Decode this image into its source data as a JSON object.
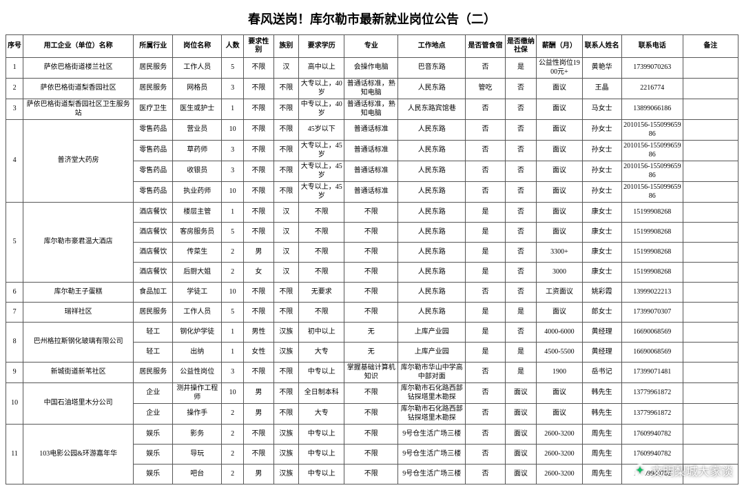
{
  "title": "春风送岗！库尔勒市最新就业岗位公告（二）",
  "watermark": "文明梨城大家谈",
  "headers": [
    "序号",
    "用工企业（单位）名称",
    "所属行业",
    "岗位名称",
    "人数",
    "要求性别",
    "族别",
    "要求学历",
    "专业",
    "工作地点",
    "是否管食宿",
    "是否缴纳社保",
    "薪酬（月）",
    "联系人姓名",
    "联系电话",
    "备注"
  ],
  "groups": [
    {
      "seq": "1",
      "company": "萨依巴格街道楼兰社区",
      "rows": [
        {
          "ind": "居民服务",
          "pos": "工作人员",
          "cnt": "5",
          "sex": "不限",
          "nat": "汉",
          "edu": "高中以上",
          "major": "会操作电脑",
          "loc": "巴音东路",
          "food": "否",
          "ins": "是",
          "sal": "公益性岗位1900元+",
          "name": "黄艳华",
          "tel": "17399070263",
          "note": ""
        }
      ]
    },
    {
      "seq": "2",
      "company": "萨依巴格街道梨香园社区",
      "rows": [
        {
          "ind": "居民服务",
          "pos": "网格员",
          "cnt": "3",
          "sex": "不限",
          "nat": "不限",
          "edu": "大专以上，40岁",
          "major": "普通话标准，熟知电脑",
          "loc": "人民东路",
          "food": "管吃",
          "ins": "否",
          "sal": "面议",
          "name": "王晶",
          "tel": "2216774",
          "note": ""
        }
      ]
    },
    {
      "seq": "3",
      "company": "萨依巴格街道梨香园社区卫生服务站",
      "rows": [
        {
          "ind": "医疗卫生",
          "pos": "医生或护士",
          "cnt": "1",
          "sex": "不限",
          "nat": "不限",
          "edu": "中专以上，40岁",
          "major": "普通话标准，熟知电脑",
          "loc": "人民东路宾馆巷",
          "food": "否",
          "ins": "否",
          "sal": "面议",
          "name": "马女士",
          "tel": "13899066186",
          "note": ""
        }
      ]
    },
    {
      "seq": "4",
      "company": "普济堂大药房",
      "rows": [
        {
          "ind": "零售药品",
          "pos": "营业员",
          "cnt": "10",
          "sex": "不限",
          "nat": "不限",
          "edu": "45岁以下",
          "major": "普通话标准",
          "loc": "人民东路",
          "food": "否",
          "ins": "否",
          "sal": "面议",
          "name": "孙女士",
          "tel": "2010156-15509965986",
          "note": ""
        },
        {
          "ind": "零售药品",
          "pos": "草药师",
          "cnt": "3",
          "sex": "不限",
          "nat": "不限",
          "edu": "大专以上，45岁",
          "major": "普通话标准",
          "loc": "人民东路",
          "food": "否",
          "ins": "否",
          "sal": "面议",
          "name": "孙女士",
          "tel": "2010156-15509965986",
          "note": ""
        },
        {
          "ind": "零售药品",
          "pos": "收银员",
          "cnt": "3",
          "sex": "不限",
          "nat": "不限",
          "edu": "大专以上，45岁",
          "major": "普通话标准",
          "loc": "人民东路",
          "food": "否",
          "ins": "否",
          "sal": "面议",
          "name": "孙女士",
          "tel": "2010156-15509965986",
          "note": ""
        },
        {
          "ind": "零售药品",
          "pos": "执业药师",
          "cnt": "10",
          "sex": "不限",
          "nat": "不限",
          "edu": "大专以上，45岁",
          "major": "普通话标准",
          "loc": "人民东路",
          "food": "否",
          "ins": "否",
          "sal": "面议",
          "name": "孙女士",
          "tel": "2010156-15509965986",
          "note": ""
        }
      ]
    },
    {
      "seq": "5",
      "company": "库尔勒市豪君温大酒店",
      "rows": [
        {
          "ind": "酒店餐饮",
          "pos": "楼层主管",
          "cnt": "1",
          "sex": "不限",
          "nat": "汉",
          "edu": "不限",
          "major": "不限",
          "loc": "人民东路",
          "food": "是",
          "ins": "否",
          "sal": "面议",
          "name": "康女士",
          "tel": "15199908268",
          "note": ""
        },
        {
          "ind": "酒店餐饮",
          "pos": "客房服务员",
          "cnt": "5",
          "sex": "不限",
          "nat": "汉",
          "edu": "不限",
          "major": "不限",
          "loc": "人民东路",
          "food": "是",
          "ins": "否",
          "sal": "面议",
          "name": "康女士",
          "tel": "15199908268",
          "note": ""
        },
        {
          "ind": "酒店餐饮",
          "pos": "传菜生",
          "cnt": "2",
          "sex": "男",
          "nat": "汉",
          "edu": "不限",
          "major": "不限",
          "loc": "人民东路",
          "food": "是",
          "ins": "否",
          "sal": "3300+",
          "name": "康女士",
          "tel": "15199908268",
          "note": ""
        },
        {
          "ind": "酒店餐饮",
          "pos": "后厨大姐",
          "cnt": "2",
          "sex": "女",
          "nat": "汉",
          "edu": "不限",
          "major": "不限",
          "loc": "人民东路",
          "food": "是",
          "ins": "否",
          "sal": "3000",
          "name": "康女士",
          "tel": "15199908268",
          "note": ""
        }
      ]
    },
    {
      "seq": "6",
      "company": "库尔勒王子蛋糕",
      "rows": [
        {
          "ind": "食品加工",
          "pos": "学徒工",
          "cnt": "10",
          "sex": "不限",
          "nat": "不限",
          "edu": "无要求",
          "major": "不限",
          "loc": "人民东路",
          "food": "否",
          "ins": "否",
          "sal": "工资面议",
          "name": "姚彩霞",
          "tel": "13999022213",
          "note": ""
        }
      ]
    },
    {
      "seq": "7",
      "company": "瑞祥社区",
      "rows": [
        {
          "ind": "居民服务",
          "pos": "工作人员",
          "cnt": "5",
          "sex": "不限",
          "nat": "不限",
          "edu": "不限",
          "major": "不限",
          "loc": "人民东路",
          "food": "是",
          "ins": "是",
          "sal": "面议",
          "name": "郎女士",
          "tel": "17399070307",
          "note": ""
        }
      ]
    },
    {
      "seq": "8",
      "company": "巴州格拉斯钢化玻璃有限公司",
      "rows": [
        {
          "ind": "轻工",
          "pos": "钢化炉学徒",
          "cnt": "1",
          "sex": "男性",
          "nat": "汉族",
          "edu": "初中以上",
          "major": "无",
          "loc": "上库产业园",
          "food": "是",
          "ins": "否",
          "sal": "4000-6000",
          "name": "黄经理",
          "tel": "16690068569",
          "note": ""
        },
        {
          "ind": "轻工",
          "pos": "出纳",
          "cnt": "1",
          "sex": "女性",
          "nat": "汉族",
          "edu": "大专",
          "major": "无",
          "loc": "上库产业园",
          "food": "是",
          "ins": "是",
          "sal": "4500-5500",
          "name": "黄经理",
          "tel": "16690068569",
          "note": ""
        }
      ]
    },
    {
      "seq": "9",
      "company": "新城街道新苇社区",
      "rows": [
        {
          "ind": "居民服务",
          "pos": "公益性岗位",
          "cnt": "3",
          "sex": "不限",
          "nat": "不限",
          "edu": "中专以上",
          "major": "掌握基础计算机知识",
          "loc": "库尔勒市华山中学高中部对面",
          "food": "否",
          "ins": "是",
          "sal": "1900",
          "name": "岳书记",
          "tel": "17399071481",
          "note": ""
        }
      ]
    },
    {
      "seq": "10",
      "company": "中国石油塔里木分公司",
      "rows": [
        {
          "ind": "企业",
          "pos": "测井操作工程师",
          "cnt": "10",
          "sex": "男",
          "nat": "不限",
          "edu": "全日制本科",
          "major": "不限",
          "loc": "库尔勒市石化路西部钻探塔里木勘探",
          "food": "否",
          "ins": "面议",
          "sal": "面议",
          "name": "韩先生",
          "tel": "13779961872",
          "note": ""
        },
        {
          "ind": "企业",
          "pos": "操作手",
          "cnt": "2",
          "sex": "男",
          "nat": "不限",
          "edu": "大专",
          "major": "不限",
          "loc": "库尔勒市石化路西部钻探塔里木勘探",
          "food": "否",
          "ins": "面议",
          "sal": "面议",
          "name": "韩先生",
          "tel": "13779961872",
          "note": ""
        }
      ]
    },
    {
      "seq": "11",
      "company": "103电影公园&环游嘉年华",
      "rows": [
        {
          "ind": "娱乐",
          "pos": "影务",
          "cnt": "2",
          "sex": "不限",
          "nat": "汉族",
          "edu": "中专以上",
          "major": "不限",
          "loc": "9号仓生活广场三楼",
          "food": "否",
          "ins": "面议",
          "sal": "2600-3200",
          "name": "周先生",
          "tel": "17609940782",
          "note": ""
        },
        {
          "ind": "娱乐",
          "pos": "导玩",
          "cnt": "2",
          "sex": "不限",
          "nat": "汉族",
          "edu": "中专以上",
          "major": "不限",
          "loc": "9号仓生活广场三楼",
          "food": "否",
          "ins": "面议",
          "sal": "2600-3200",
          "name": "周先生",
          "tel": "17609940782",
          "note": ""
        },
        {
          "ind": "娱乐",
          "pos": "吧台",
          "cnt": "2",
          "sex": "男",
          "nat": "汉族",
          "edu": "中专以上",
          "major": "不限",
          "loc": "9号仓生活广场三楼",
          "food": "否",
          "ins": "面议",
          "sal": "2600-3200",
          "name": "周先生",
          "tel": "17609940782",
          "note": ""
        }
      ]
    }
  ]
}
